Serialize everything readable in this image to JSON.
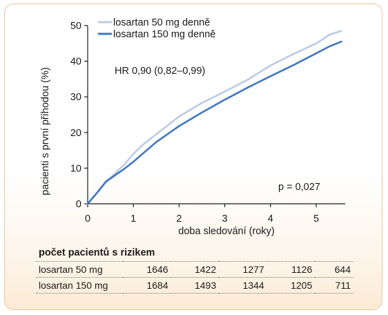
{
  "chart_data": {
    "type": "line",
    "title": "",
    "xlabel": "doba sledování (roky)",
    "ylabel": "pacienti s první příhodou (%)",
    "xlim": [
      0,
      5.6
    ],
    "ylim": [
      0,
      50
    ],
    "x_ticks": [
      0,
      1,
      2,
      3,
      4,
      5
    ],
    "y_ticks": [
      0,
      10,
      20,
      30,
      40,
      50
    ],
    "grid": false,
    "legend_position": "top-left",
    "series": [
      {
        "name": "losartan 50 mg denně",
        "color": "#b9cbe6",
        "x": [
          0,
          0.2,
          0.4,
          0.6,
          0.8,
          1.0,
          1.2,
          1.5,
          2.0,
          2.5,
          3.0,
          3.5,
          4.0,
          4.5,
          5.0,
          5.3,
          5.55
        ],
        "y": [
          0,
          3,
          6.3,
          8.5,
          11,
          14,
          16.5,
          19.5,
          24.5,
          28.3,
          31.5,
          34.8,
          38.8,
          42.0,
          45.0,
          47.5,
          48.5
        ]
      },
      {
        "name": "losartan 150 mg denně",
        "color": "#4077bf",
        "x": [
          0,
          0.2,
          0.4,
          0.6,
          0.8,
          1.0,
          1.2,
          1.5,
          2.0,
          2.5,
          3.0,
          3.5,
          4.0,
          4.5,
          5.0,
          5.3,
          5.55
        ],
        "y": [
          0,
          3,
          6.2,
          8.0,
          9.8,
          11.8,
          14,
          17.3,
          21.8,
          25.6,
          29.2,
          32.6,
          35.8,
          38.9,
          42.2,
          44.2,
          45.5
        ]
      }
    ],
    "annotations": {
      "hr": "HR 0,90 (0,82–0,99)",
      "p": "p = 0,027"
    }
  },
  "risk_table": {
    "title": "počet pacientů s rizikem",
    "rows": [
      {
        "label": "losartan 50 mg",
        "values": [
          "1646",
          "1422",
          "1277",
          "1126",
          "644"
        ]
      },
      {
        "label": "losartan 150 mg",
        "values": [
          "1684",
          "1493",
          "1344",
          "1205",
          "711"
        ]
      }
    ]
  }
}
